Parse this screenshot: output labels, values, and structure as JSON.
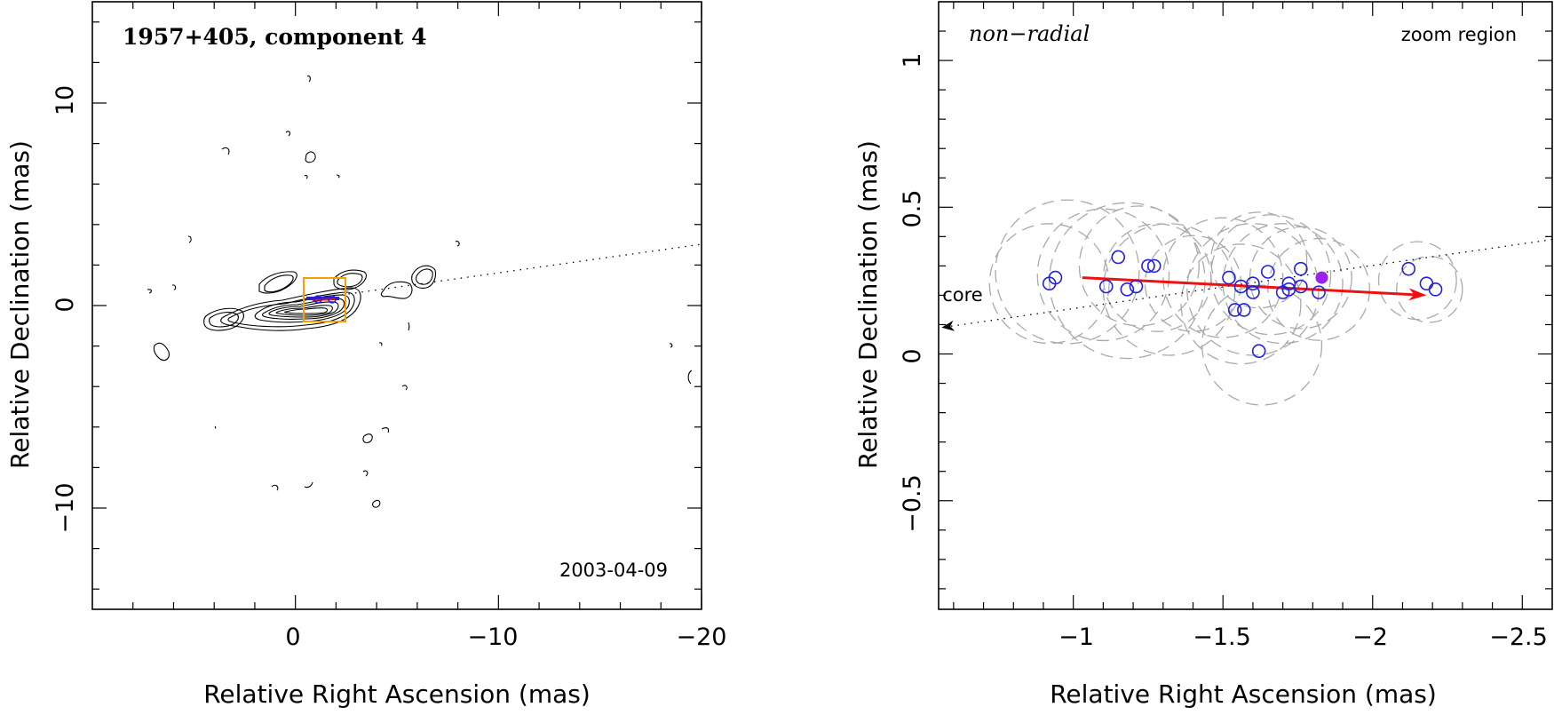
{
  "colors": {
    "component": "#2222dd",
    "fit_arrow": "#ee1111",
    "reference_point": "#9922ee",
    "zoom_box": "#f5a000",
    "uncertainty": "#aaaaaa"
  },
  "left_panel": {
    "title": "1957+405, component 4",
    "date": "2003-04-09",
    "xlabel": "Relative Right Ascension (mas)",
    "ylabel": "Relative Declination (mas)",
    "x_ticks": [
      "0",
      "−10",
      "−20"
    ],
    "y_ticks": [
      "10",
      "0",
      "−10"
    ]
  },
  "right_panel": {
    "title": "non−radial",
    "note": "zoom region",
    "core_label": "core",
    "xlabel": "Relative Right Ascension (mas)",
    "ylabel": "Relative Declination (mas)",
    "x_ticks": [
      "−1",
      "−1.5",
      "−2",
      "−2.5"
    ],
    "y_ticks": [
      "1",
      "0.5",
      "0",
      "−0.5"
    ]
  },
  "chart_data": [
    {
      "type": "contour",
      "title": "1957+405, component 4",
      "xlabel": "Relative Right Ascension (mas)",
      "ylabel": "Relative Declination (mas)",
      "xlim": [
        10,
        -20
      ],
      "ylim": [
        -15,
        15
      ],
      "x_ticks": [
        0,
        -10,
        -20
      ],
      "y_ticks": [
        10,
        0,
        -10
      ],
      "annotation": "2003-04-09",
      "jet_axis": {
        "from": [
          -2,
          0.5
        ],
        "to": [
          -20,
          3
        ]
      },
      "zoom_region": {
        "x": [
          -0.6,
          -2.6
        ],
        "y": [
          -0.9,
          1.2
        ]
      }
    },
    {
      "type": "scatter",
      "title": "non−radial",
      "note": "zoom region",
      "xlabel": "Relative Right Ascension (mas)",
      "ylabel": "Relative Declination (mas)",
      "xlim": [
        -0.55,
        -2.6
      ],
      "ylim": [
        -0.87,
        1.2
      ],
      "x_ticks": [
        -1,
        -1.5,
        -2,
        -2.5
      ],
      "y_ticks": [
        1,
        0.5,
        0,
        -0.5
      ],
      "points": [
        {
          "x": -0.92,
          "y": 0.24
        },
        {
          "x": -0.94,
          "y": 0.26
        },
        {
          "x": -1.11,
          "y": 0.23
        },
        {
          "x": -1.15,
          "y": 0.33
        },
        {
          "x": -1.18,
          "y": 0.22
        },
        {
          "x": -1.21,
          "y": 0.23
        },
        {
          "x": -1.25,
          "y": 0.3
        },
        {
          "x": -1.27,
          "y": 0.3
        },
        {
          "x": -1.52,
          "y": 0.26
        },
        {
          "x": -1.54,
          "y": 0.15
        },
        {
          "x": -1.56,
          "y": 0.23
        },
        {
          "x": -1.57,
          "y": 0.15
        },
        {
          "x": -1.6,
          "y": 0.24
        },
        {
          "x": -1.6,
          "y": 0.21
        },
        {
          "x": -1.62,
          "y": 0.01
        },
        {
          "x": -1.65,
          "y": 0.28
        },
        {
          "x": -1.7,
          "y": 0.21
        },
        {
          "x": -1.72,
          "y": 0.24
        },
        {
          "x": -1.72,
          "y": 0.22
        },
        {
          "x": -1.76,
          "y": 0.29
        },
        {
          "x": -1.76,
          "y": 0.23
        },
        {
          "x": -1.82,
          "y": 0.21
        },
        {
          "x": -2.12,
          "y": 0.29
        },
        {
          "x": -2.18,
          "y": 0.24
        },
        {
          "x": -2.21,
          "y": 0.22
        }
      ],
      "reference_point": {
        "x": -1.83,
        "y": 0.26
      },
      "uncertainty_circles": [
        {
          "x": -0.92,
          "y": 0.24,
          "r": 0.2
        },
        {
          "x": -0.98,
          "y": 0.28,
          "r": 0.24
        },
        {
          "x": -1.1,
          "y": 0.27,
          "r": 0.22
        },
        {
          "x": -1.18,
          "y": 0.25,
          "r": 0.26
        },
        {
          "x": -1.22,
          "y": 0.3,
          "r": 0.2
        },
        {
          "x": -1.28,
          "y": 0.26,
          "r": 0.18
        },
        {
          "x": -1.32,
          "y": 0.22,
          "r": 0.22
        },
        {
          "x": -1.5,
          "y": 0.26,
          "r": 0.2
        },
        {
          "x": -1.56,
          "y": 0.17,
          "r": 0.2
        },
        {
          "x": -1.6,
          "y": 0.22,
          "r": 0.22
        },
        {
          "x": -1.63,
          "y": 0.03,
          "r": 0.2
        },
        {
          "x": -1.66,
          "y": 0.27,
          "r": 0.2
        },
        {
          "x": -1.7,
          "y": 0.24,
          "r": 0.2
        },
        {
          "x": -1.76,
          "y": 0.26,
          "r": 0.17
        },
        {
          "x": -1.62,
          "y": 0.32,
          "r": 0.16
        },
        {
          "x": -1.4,
          "y": 0.24,
          "r": 0.16
        },
        {
          "x": -1.82,
          "y": 0.22,
          "r": 0.17
        },
        {
          "x": -2.15,
          "y": 0.25,
          "r": 0.13
        },
        {
          "x": -2.19,
          "y": 0.22,
          "r": 0.11
        }
      ],
      "fit_arrow": {
        "from": [
          -1.03,
          0.26
        ],
        "to": [
          -2.18,
          0.2
        ]
      },
      "jet_axis": {
        "from": [
          -2.6,
          0.39
        ],
        "to": [
          -0.56,
          0.09
        ]
      },
      "core_label_at": [
        -0.63,
        0.18
      ]
    }
  ]
}
